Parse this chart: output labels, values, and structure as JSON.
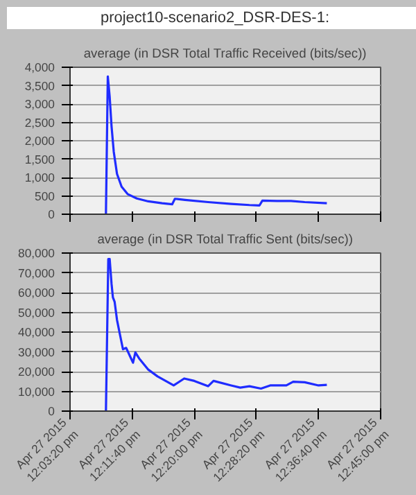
{
  "chart_data": [
    {
      "type": "line",
      "title": "average (in DSR Total Traffic Received (bits/sec))",
      "annotations": [
        "project10-scenario2_DSR-DES-1:"
      ],
      "x": [
        "2015-04-27T12:08:09",
        "2015-04-27T12:08:24",
        "2015-04-27T12:08:39",
        "2015-04-27T12:08:54",
        "2015-04-27T12:09:12",
        "2015-04-27T12:09:38",
        "2015-04-27T12:10:15",
        "2015-04-27T12:11:03",
        "2015-04-27T12:12:17",
        "2015-04-27T12:13:50",
        "2015-04-27T12:15:41",
        "2015-04-27T12:17:02",
        "2015-04-27T12:17:24",
        "2015-04-27T12:18:46",
        "2015-04-27T12:21:51",
        "2015-04-27T12:24:57",
        "2015-04-27T12:27:24",
        "2015-04-27T12:28:45",
        "2015-04-27T12:29:08",
        "2015-04-27T12:31:07",
        "2015-04-27T12:32:58",
        "2015-04-27T12:34:49",
        "2015-04-27T12:37:47"
      ],
      "series": [
        {
          "color": "#1f2cff",
          "values": [
            0,
            3750,
            3200,
            2400,
            1700,
            1100,
            750,
            550,
            430,
            350,
            300,
            270,
            420,
            390,
            330,
            280,
            250,
            240,
            370,
            360,
            360,
            330,
            300
          ]
        }
      ],
      "xlim": [
        "2015-04-27T12:03:20",
        "2015-04-27T12:45:00"
      ],
      "ylim": [
        0,
        4000
      ],
      "yticks": [
        {
          "value": 0,
          "label": "0"
        },
        {
          "value": 500,
          "label": "500"
        },
        {
          "value": 1000,
          "label": "1,000"
        },
        {
          "value": 1500,
          "label": "1,500"
        },
        {
          "value": 2000,
          "label": "2,000"
        },
        {
          "value": 2500,
          "label": "2,500"
        },
        {
          "value": 3000,
          "label": "3,000"
        },
        {
          "value": 3500,
          "label": "3,500"
        },
        {
          "value": 4000,
          "label": "4,000"
        }
      ],
      "xticks": [
        {
          "value": "2015-04-27T12:03:20",
          "label": null
        },
        {
          "value": "2015-04-27T12:11:40",
          "label": null
        },
        {
          "value": "2015-04-27T12:20:00",
          "label": null
        },
        {
          "value": "2015-04-27T12:28:20",
          "label": null
        },
        {
          "value": "2015-04-27T12:36:40",
          "label": null
        },
        {
          "value": "2015-04-27T12:45:00",
          "label": null
        }
      ],
      "tick_labels": "y",
      "grid": "y",
      "marker": "none",
      "line_style": "solid"
    },
    {
      "type": "line",
      "title": "average (in DSR Total Traffic Sent (bits/sec))",
      "x": [
        "2015-04-27T12:08:09",
        "2015-04-27T12:08:28",
        "2015-04-27T12:08:39",
        "2015-04-27T12:08:54",
        "2015-04-27T12:09:05",
        "2015-04-27T12:09:19",
        "2015-04-27T12:09:38",
        "2015-04-27T12:10:00",
        "2015-04-27T12:10:26",
        "2015-04-27T12:10:52",
        "2015-04-27T12:11:22",
        "2015-04-27T12:11:47",
        "2015-04-27T12:12:06",
        "2015-04-27T12:12:36",
        "2015-04-27T12:13:50",
        "2015-04-27T12:15:04",
        "2015-04-27T12:17:14",
        "2015-04-27T12:18:39",
        "2015-04-27T12:20:00",
        "2015-04-27T12:21:51",
        "2015-04-27T12:22:35",
        "2015-04-27T12:24:57",
        "2015-04-27T12:26:10",
        "2015-04-27T12:27:24",
        "2015-04-27T12:28:57",
        "2015-04-27T12:30:11",
        "2015-04-27T12:32:21",
        "2015-04-27T12:33:16",
        "2015-04-27T12:34:49",
        "2015-04-27T12:36:40",
        "2015-04-27T12:37:47"
      ],
      "series": [
        {
          "color": "#1f2cff",
          "values": [
            0,
            77000,
            77000,
            64500,
            57600,
            55300,
            46200,
            39300,
            31300,
            32000,
            27900,
            24500,
            29700,
            26700,
            21000,
            17600,
            13000,
            16500,
            15300,
            12600,
            15300,
            13000,
            11900,
            12600,
            11400,
            13000,
            13000,
            14900,
            14600,
            13000,
            13300
          ]
        }
      ],
      "xlim": [
        "2015-04-27T12:03:20",
        "2015-04-27T12:45:00"
      ],
      "ylim": [
        0,
        80000
      ],
      "yticks": [
        {
          "value": 0,
          "label": "0"
        },
        {
          "value": 10000,
          "label": "10,000"
        },
        {
          "value": 20000,
          "label": "20,000"
        },
        {
          "value": 30000,
          "label": "30,000"
        },
        {
          "value": 40000,
          "label": "40,000"
        },
        {
          "value": 50000,
          "label": "50,000"
        },
        {
          "value": 60000,
          "label": "60,000"
        },
        {
          "value": 70000,
          "label": "70,000"
        },
        {
          "value": 80000,
          "label": "80,000"
        }
      ],
      "xticks": [
        {
          "value": "2015-04-27T12:03:20",
          "label": "Apr 27 2015\n12:03:20 pm"
        },
        {
          "value": "2015-04-27T12:11:40",
          "label": "Apr 27 2015\n12:11:40 pm"
        },
        {
          "value": "2015-04-27T12:20:00",
          "label": "Apr 27 2015\n12:20:00 pm"
        },
        {
          "value": "2015-04-27T12:28:20",
          "label": "Apr 27 2015\n12:28:20 pm"
        },
        {
          "value": "2015-04-27T12:36:40",
          "label": "Apr 27 2015\n12:36:40 pm"
        },
        {
          "value": "2015-04-27T12:45:00",
          "label": "Apr 27 2015\n12:45:00 pm"
        }
      ],
      "grid": "y",
      "marker": "none",
      "line_style": "solid"
    }
  ]
}
